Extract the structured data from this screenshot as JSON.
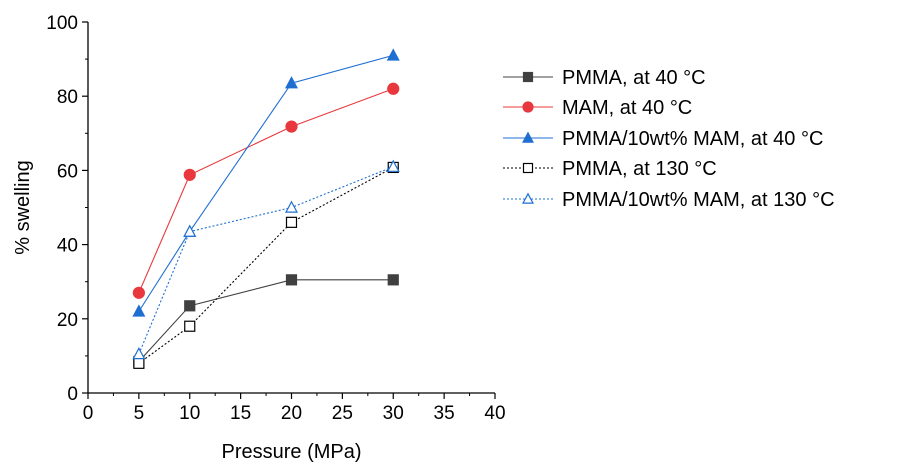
{
  "chart_data": {
    "type": "line",
    "xlabel": "Pressure (MPa)",
    "ylabel": "% swelling",
    "xlim": [
      0,
      40
    ],
    "ylim": [
      0,
      100
    ],
    "xticks": [
      0,
      5,
      10,
      15,
      20,
      25,
      30,
      35,
      40
    ],
    "yticks": [
      0,
      20,
      40,
      60,
      80,
      100
    ],
    "grid": false,
    "legend_position": "right",
    "series": [
      {
        "name": "PMMA, at 40 °C",
        "color": "#404040",
        "marker": "filled-square",
        "line_style": "solid",
        "x": [
          5,
          10,
          20,
          30
        ],
        "y": [
          8.5,
          23.5,
          30.5,
          30.5
        ]
      },
      {
        "name": "MAM, at 40 °C",
        "color": "#e8383d",
        "marker": "filled-circle",
        "line_style": "solid",
        "x": [
          5,
          10,
          20,
          30
        ],
        "y": [
          27,
          58.8,
          71.8,
          82
        ]
      },
      {
        "name": "PMMA/10wt% MAM, at 40 °C",
        "color": "#1f6fd1",
        "marker": "filled-triangle",
        "line_style": "solid",
        "x": [
          5,
          10,
          20,
          30
        ],
        "y": [
          22,
          43.5,
          83.5,
          91
        ]
      },
      {
        "name": "PMMA, at 130 °C",
        "color": "#000000",
        "marker": "open-square",
        "line_style": "dotted",
        "x": [
          5,
          10,
          20,
          30
        ],
        "y": [
          8,
          18,
          46,
          60.8
        ]
      },
      {
        "name": "PMMA/10wt% MAM, at 130 °C",
        "color": "#1f6fd1",
        "marker": "open-triangle",
        "line_style": "dotted",
        "x": [
          5,
          10,
          20,
          30
        ],
        "y": [
          10.5,
          43.5,
          50,
          61
        ]
      }
    ]
  }
}
